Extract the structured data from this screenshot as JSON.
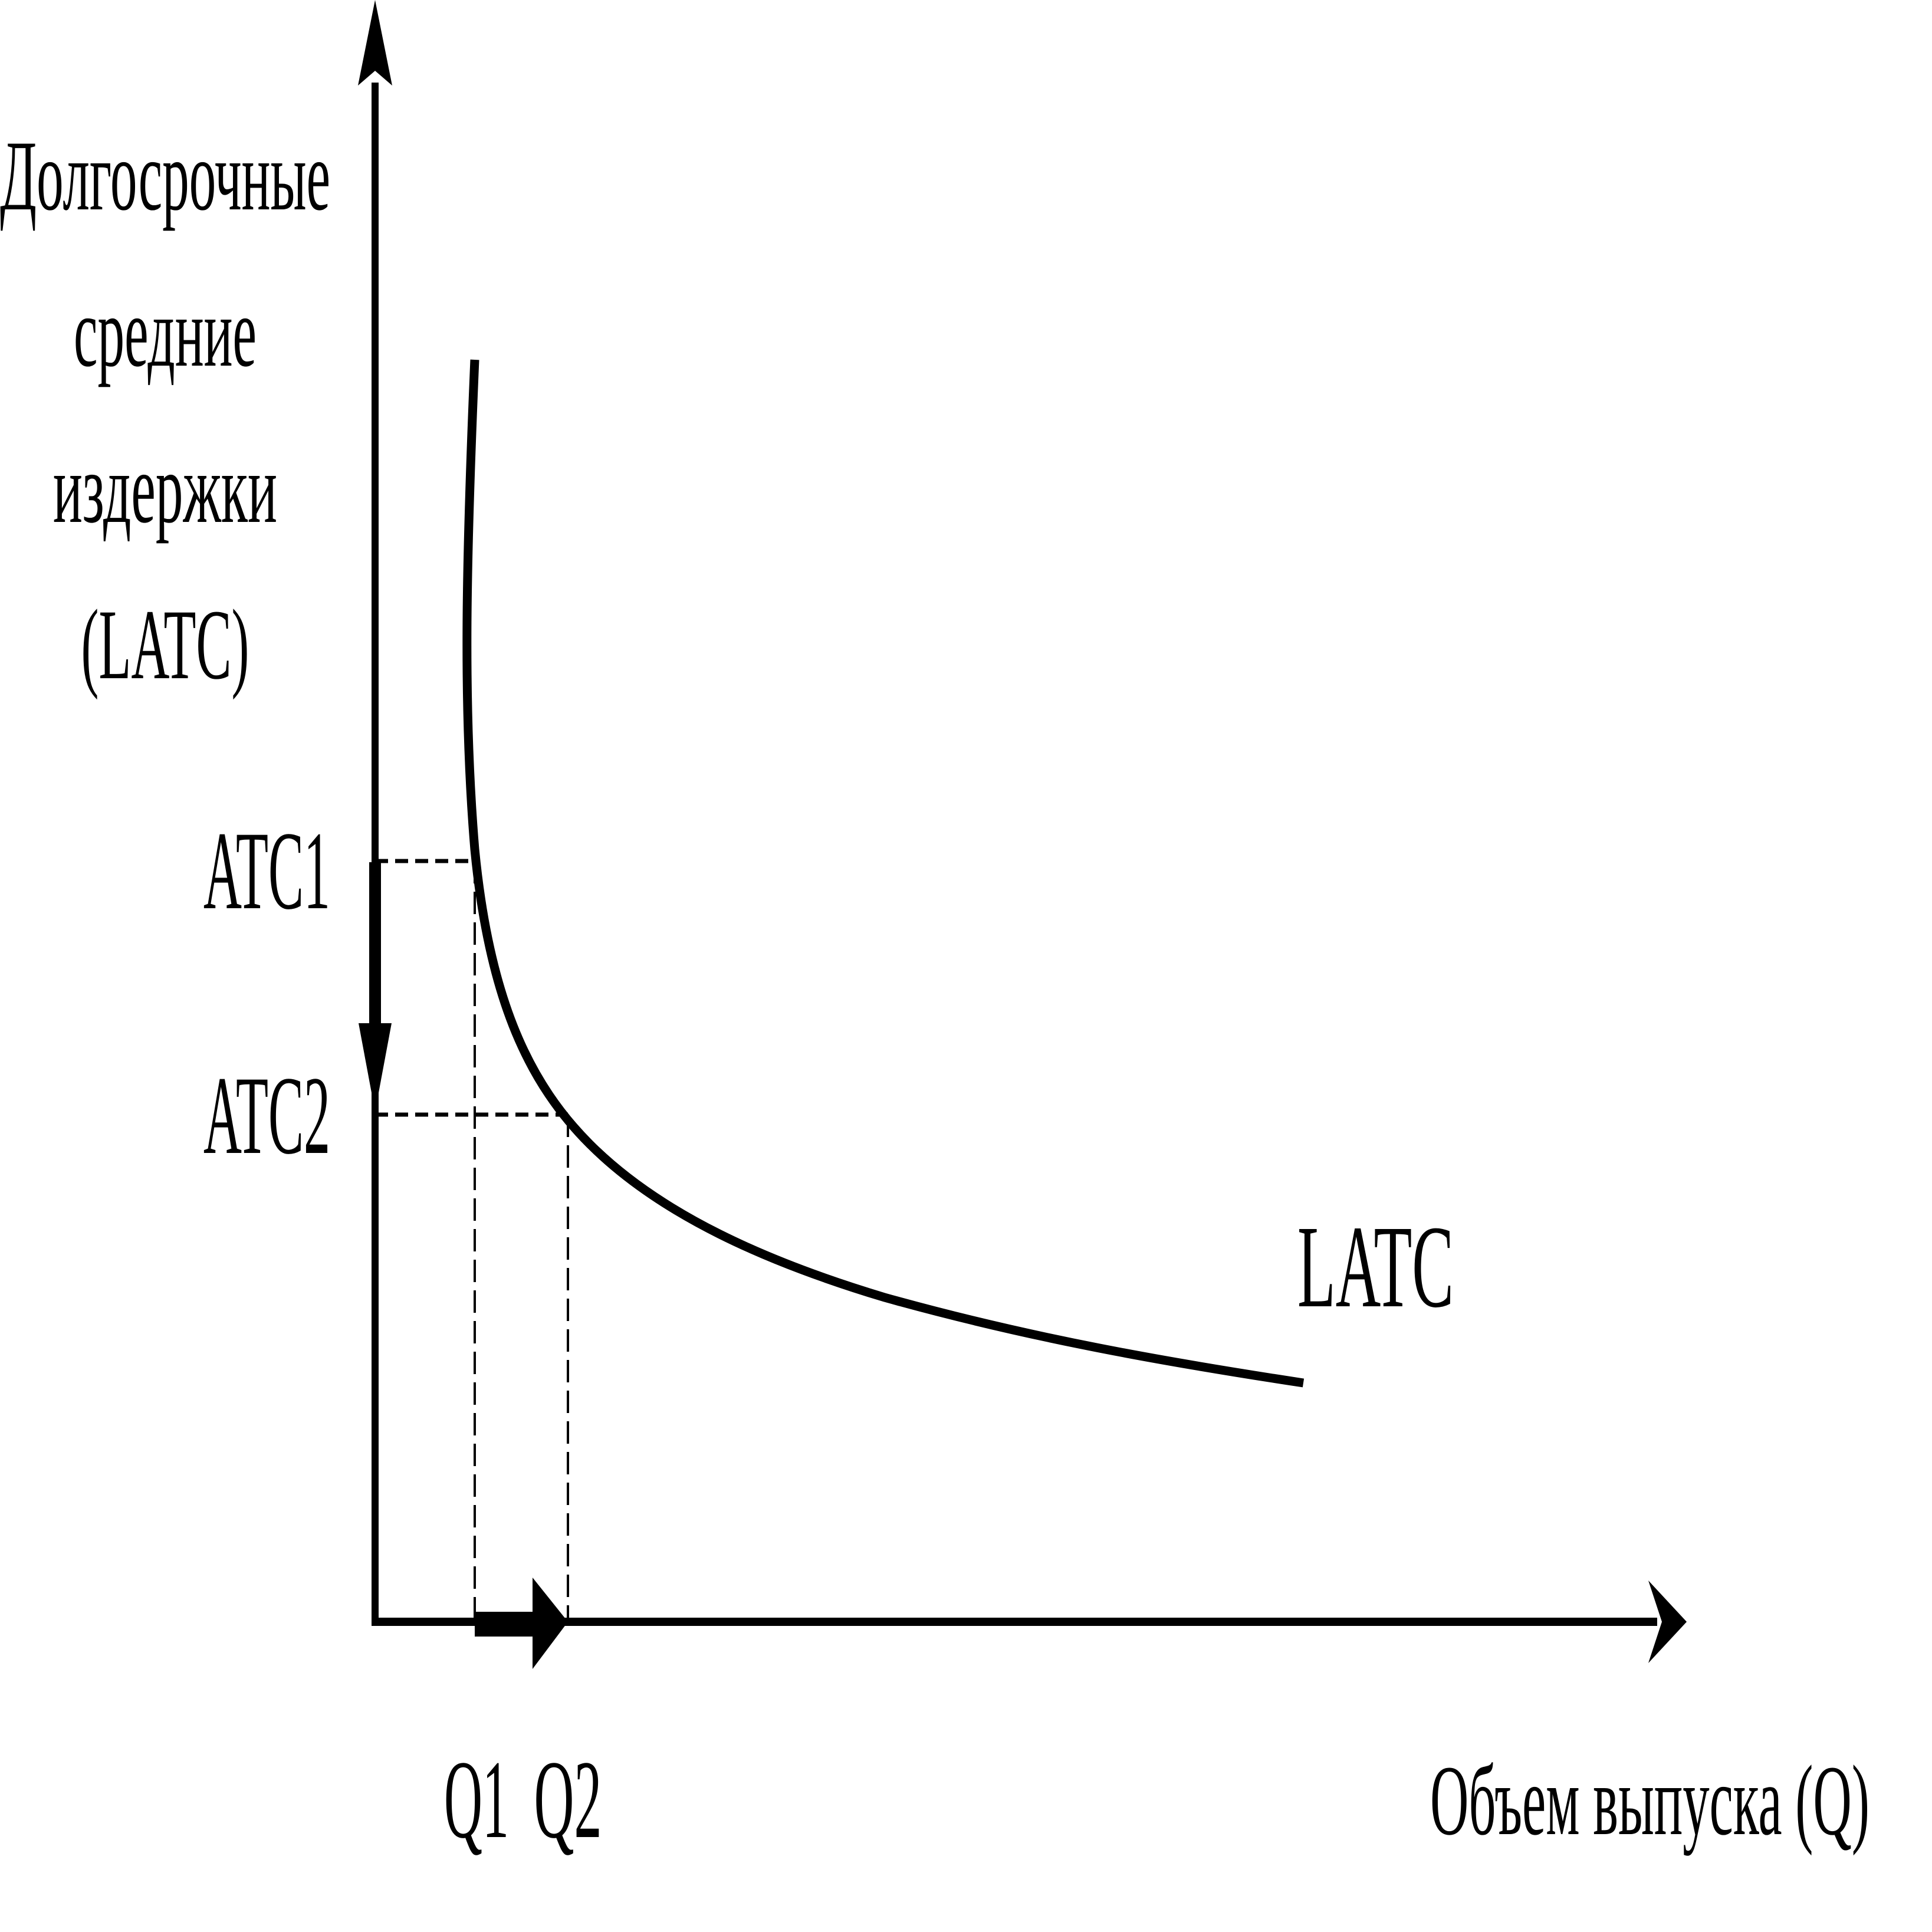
{
  "y_axis_label": [
    "Долгосрочные",
    "средние",
    "издержки",
    "(LATC)"
  ],
  "x_axis_label": "Объем выпуска (Q)",
  "curve_label": "LATC",
  "y_ticks": {
    "atc1": "ATC1",
    "atc2": "ATC2"
  },
  "x_ticks": {
    "q1": "Q1",
    "q2": "Q2"
  },
  "colors": {
    "ink": "#000000",
    "background": "#ffffff"
  }
}
